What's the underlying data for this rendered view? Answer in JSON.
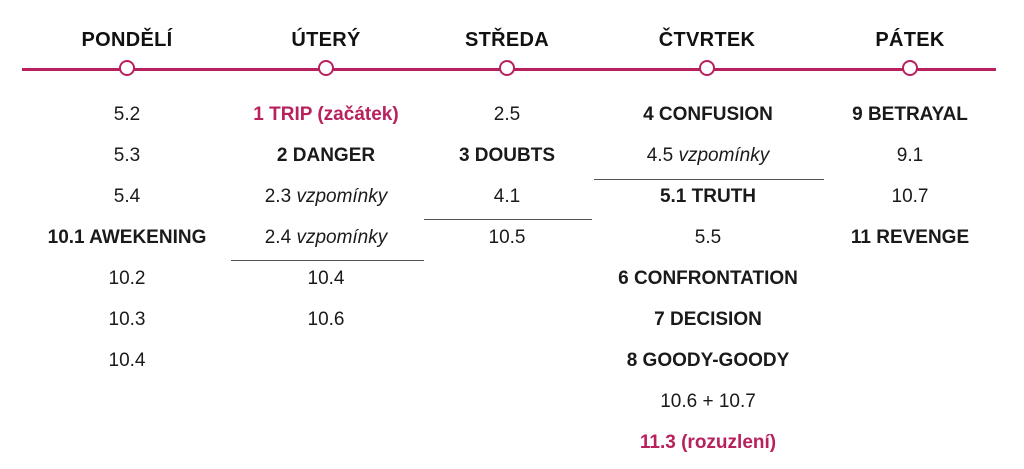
{
  "accent_color": "#b8215e",
  "days": [
    {
      "name": "PONDĚLÍ",
      "entries": [
        {
          "num": "5.2",
          "note": "",
          "style": "normal"
        },
        {
          "num": "5.3",
          "note": "",
          "style": "normal"
        },
        {
          "num": "5.4",
          "note": "",
          "style": "normal"
        },
        {
          "num": "10.1 AWEKENING",
          "note": "",
          "style": "bold"
        },
        {
          "num": "10.2",
          "note": "",
          "style": "normal"
        },
        {
          "num": "10.3",
          "note": "",
          "style": "normal"
        },
        {
          "num": "10.4",
          "note": "",
          "style": "normal"
        }
      ]
    },
    {
      "name": "ÚTERÝ",
      "entries": [
        {
          "num": "1 TRIP (začátek)",
          "note": "",
          "style": "accent"
        },
        {
          "num": "2 DANGER",
          "note": "",
          "style": "bold"
        },
        {
          "num": "2.3",
          "note": "vzpomínky",
          "style": "normal"
        },
        {
          "num": "2.4",
          "note": "vzpomínky",
          "style": "normal"
        },
        {
          "num": "10.4",
          "note": "",
          "style": "normal"
        },
        {
          "num": "10.6",
          "note": "",
          "style": "normal"
        }
      ]
    },
    {
      "name": "STŘEDA",
      "entries": [
        {
          "num": "2.5",
          "note": "",
          "style": "normal"
        },
        {
          "num": "3 DOUBTS",
          "note": "",
          "style": "bold"
        },
        {
          "num": "4.1",
          "note": "",
          "style": "normal"
        },
        {
          "num": "10.5",
          "note": "",
          "style": "normal"
        }
      ]
    },
    {
      "name": "ČTVRTEK",
      "entries": [
        {
          "num": "4 CONFUSION",
          "note": "",
          "style": "bold"
        },
        {
          "num": "4.5",
          "note": "vzpomínky",
          "style": "normal"
        },
        {
          "num": "5.1 TRUTH",
          "note": "",
          "style": "bold"
        },
        {
          "num": "5.5",
          "note": "",
          "style": "normal"
        },
        {
          "num": "6 CONFRONTATION",
          "note": "",
          "style": "bold"
        },
        {
          "num": "7 DECISION",
          "note": "",
          "style": "bold"
        },
        {
          "num": "8 GOODY-GOODY",
          "note": "",
          "style": "bold"
        },
        {
          "num": "10.6 + 10.7",
          "note": "",
          "style": "normal"
        },
        {
          "num": "11.3 (rozuzlení)",
          "note": "",
          "style": "accent"
        }
      ]
    },
    {
      "name": "PÁTEK",
      "entries": [
        {
          "num": "9 BETRAYAL",
          "note": "",
          "style": "bold"
        },
        {
          "num": "9.1",
          "note": "",
          "style": "normal"
        },
        {
          "num": "10.7",
          "note": "",
          "style": "normal"
        },
        {
          "num": "11 REVENGE",
          "note": "",
          "style": "bold"
        }
      ]
    }
  ]
}
